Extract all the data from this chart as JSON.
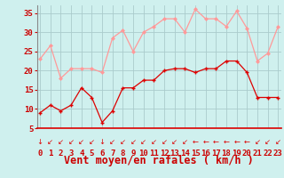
{
  "xlabel": "Vent moyen/en rafales ( km/h )",
  "x_values": [
    0,
    1,
    2,
    3,
    4,
    5,
    6,
    7,
    8,
    9,
    10,
    11,
    12,
    13,
    14,
    15,
    16,
    17,
    18,
    19,
    20,
    21,
    22,
    23
  ],
  "wind_avg": [
    9,
    11,
    9.5,
    11,
    15.5,
    13,
    6.5,
    9.5,
    15.5,
    15.5,
    17.5,
    17.5,
    20,
    20.5,
    20.5,
    19.5,
    20.5,
    20.5,
    22.5,
    22.5,
    19.5,
    13,
    13,
    13
  ],
  "wind_gust": [
    23,
    26.5,
    18,
    20.5,
    20.5,
    20.5,
    19.5,
    28.5,
    30.5,
    25,
    30,
    31.5,
    33.5,
    33.5,
    30,
    36,
    33.5,
    33.5,
    31.5,
    35.5,
    31,
    22.5,
    24.5,
    31.5
  ],
  "ylim": [
    5,
    37
  ],
  "yticks": [
    5,
    10,
    15,
    20,
    25,
    30,
    35
  ],
  "xlim": [
    0,
    23
  ],
  "bg_color": "#cff0ee",
  "grid_color": "#aacccc",
  "avg_color": "#dd0000",
  "gust_color": "#ff9999",
  "xlabel_color": "#cc0000",
  "tick_color": "#cc0000",
  "tick_fontsize": 6.5,
  "xlabel_fontsize": 8.5
}
